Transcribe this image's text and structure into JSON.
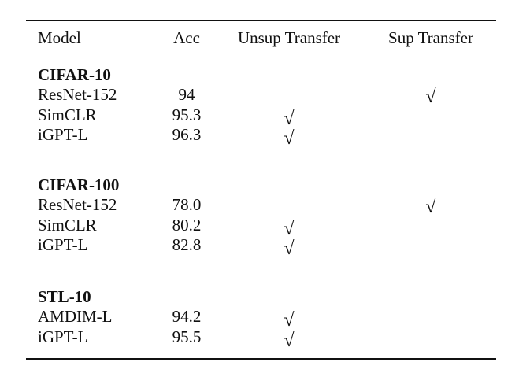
{
  "header": {
    "model": "Model",
    "acc": "Acc",
    "unsup": "Unsup Transfer",
    "sup": "Sup Transfer"
  },
  "check_symbol": "√",
  "groups": [
    {
      "name": "CIFAR-10",
      "rows": [
        {
          "model": "ResNet-152",
          "acc": "94",
          "unsup": false,
          "sup": true
        },
        {
          "model": "SimCLR",
          "acc": "95.3",
          "unsup": true,
          "sup": false
        },
        {
          "model": "iGPT-L",
          "acc": "96.3",
          "unsup": true,
          "sup": false
        }
      ]
    },
    {
      "name": "CIFAR-100",
      "rows": [
        {
          "model": "ResNet-152",
          "acc": "78.0",
          "unsup": false,
          "sup": true
        },
        {
          "model": "SimCLR",
          "acc": "80.2",
          "unsup": true,
          "sup": false
        },
        {
          "model": "iGPT-L",
          "acc": "82.8",
          "unsup": true,
          "sup": false
        }
      ]
    },
    {
      "name": "STL-10",
      "rows": [
        {
          "model": "AMDIM-L",
          "acc": "94.2",
          "unsup": true,
          "sup": false
        },
        {
          "model": "iGPT-L",
          "acc": "95.5",
          "unsup": true,
          "sup": false
        }
      ]
    }
  ]
}
